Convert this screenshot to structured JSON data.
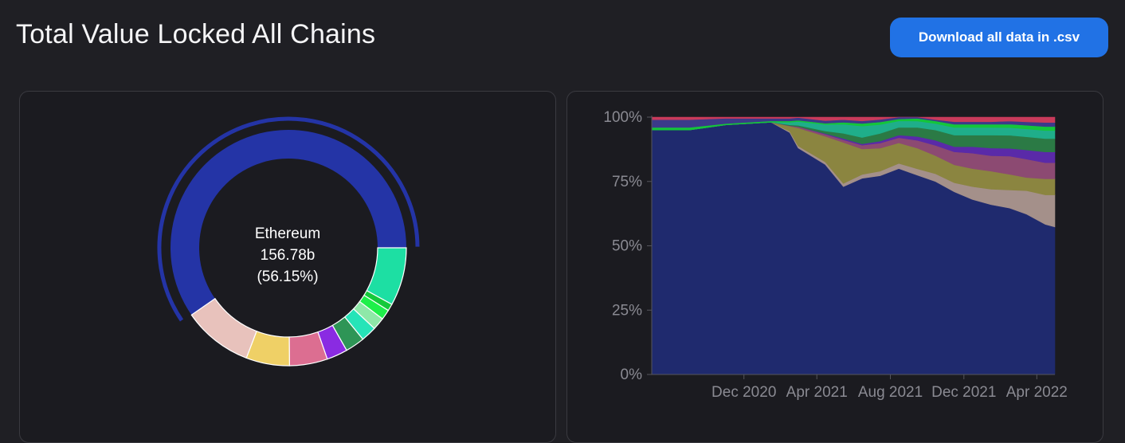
{
  "header": {
    "title": "Total Value Locked All Chains",
    "download_label": "Download all data in .csv"
  },
  "colors": {
    "background": "#1f1f24",
    "button": "#2172e5",
    "ethereum": "#2434a6"
  },
  "chart_data": [
    {
      "type": "pie",
      "style": "donut",
      "title": "",
      "center": {
        "name": "Ethereum",
        "value": "156.78b",
        "percent": "(56.15%)"
      },
      "slices": [
        {
          "color": "#2434a6",
          "percent": 56.15,
          "highlighted": true
        },
        {
          "color": "#1ddfa3",
          "percent": 7.5
        },
        {
          "color": "#15c93a",
          "percent": 0.9
        },
        {
          "color": "#1ef04a",
          "percent": 1.3
        },
        {
          "color": "#8ee8a8",
          "percent": 1.6
        },
        {
          "color": "#26e4b8",
          "percent": 2.0
        },
        {
          "color": "#2e9556",
          "percent": 2.5
        },
        {
          "color": "#8a2be2",
          "percent": 2.7
        },
        {
          "color": "#dc6e91",
          "percent": 4.9
        },
        {
          "color": "#efd066",
          "percent": 5.6
        },
        {
          "color": "#e8c2bc",
          "percent": 9.0
        }
      ]
    },
    {
      "type": "area",
      "stacked": true,
      "normalized": true,
      "ylim": [
        0,
        100
      ],
      "y_ticks": [
        "0%",
        "25%",
        "50%",
        "75%",
        "100%"
      ],
      "x_ticks": [
        "Dec 2020",
        "Apr 2021",
        "Aug 2021",
        "Dec 2021",
        "Apr 2022"
      ],
      "x": [
        "2020-07-01",
        "2020-09-01",
        "2020-11-01",
        "2021-01-15",
        "2021-02-15",
        "2021-03-01",
        "2021-04-15",
        "2021-05-15",
        "2021-06-15",
        "2021-07-15",
        "2021-08-15",
        "2021-09-15",
        "2021-10-15",
        "2021-11-15",
        "2021-12-15",
        "2022-01-15",
        "2022-02-15",
        "2022-03-15",
        "2022-04-15",
        "2022-05-01"
      ],
      "series": [
        {
          "color": "#1f2a6e",
          "values": [
            95,
            95,
            97,
            98,
            94,
            88,
            82,
            73,
            77,
            78,
            80,
            77,
            75,
            71,
            68,
            66,
            64,
            61,
            56,
            55
          ]
        },
        {
          "color": "#a4908a",
          "values": [
            0,
            0,
            0,
            0,
            0.5,
            0.8,
            1,
            1.2,
            1.5,
            1.8,
            2,
            2.5,
            3,
            3.5,
            5,
            6,
            7,
            9,
            11,
            12
          ]
        },
        {
          "color": "#8b8540",
          "values": [
            0,
            0,
            0,
            0,
            2,
            7,
            10,
            16,
            10,
            9,
            8,
            8,
            7,
            7,
            7,
            7,
            6,
            5,
            6,
            6
          ]
        },
        {
          "color": "#8c4a72",
          "values": [
            0,
            0,
            0,
            0,
            0.2,
            0.5,
            0.8,
            1,
            1.5,
            2,
            2,
            3,
            4,
            5,
            6,
            6,
            7,
            7,
            6,
            6
          ]
        },
        {
          "color": "#5a2aa8",
          "values": [
            0,
            0,
            0,
            0,
            0,
            0,
            0.3,
            0.5,
            0.5,
            0.8,
            1,
            1.5,
            2,
            2,
            2.5,
            3,
            3,
            3.5,
            4,
            4
          ]
        },
        {
          "color": "#2b7a45",
          "values": [
            0,
            0,
            0,
            0,
            0.3,
            0.5,
            1,
            2,
            2.5,
            3,
            3,
            3.5,
            4,
            4.5,
            4.5,
            5,
            5,
            5,
            5,
            5
          ]
        },
        {
          "color": "#1fae8a",
          "values": [
            0,
            0,
            0,
            0,
            1,
            1.5,
            2.5,
            3.5,
            4.5,
            3.5,
            2.5,
            2.5,
            2.5,
            3,
            3,
            3,
            3,
            3,
            3,
            3
          ]
        },
        {
          "color": "#14c53a",
          "values": [
            1,
            1,
            0.5,
            0.5,
            0.5,
            0.5,
            0.5,
            0.8,
            1,
            1,
            0.8,
            1,
            1,
            1.2,
            1.2,
            1.2,
            1.3,
            1.4,
            1.5,
            1.5
          ]
        },
        {
          "color": "#3b3a8a",
          "values": [
            3,
            3,
            2,
            1,
            1,
            1,
            1,
            1,
            1,
            1,
            0.7,
            0.5,
            0.5,
            1,
            1,
            1,
            1.2,
            1.3,
            1.5,
            1.5
          ]
        },
        {
          "color": "#c93b5b",
          "values": [
            1,
            1,
            0.5,
            0.5,
            0.5,
            0.2,
            1.4,
            1,
            1.5,
            0.9,
            0,
            0,
            1,
            1.8,
            1.8,
            1.8,
            1.5,
            1.8,
            2,
            2
          ]
        }
      ]
    }
  ]
}
